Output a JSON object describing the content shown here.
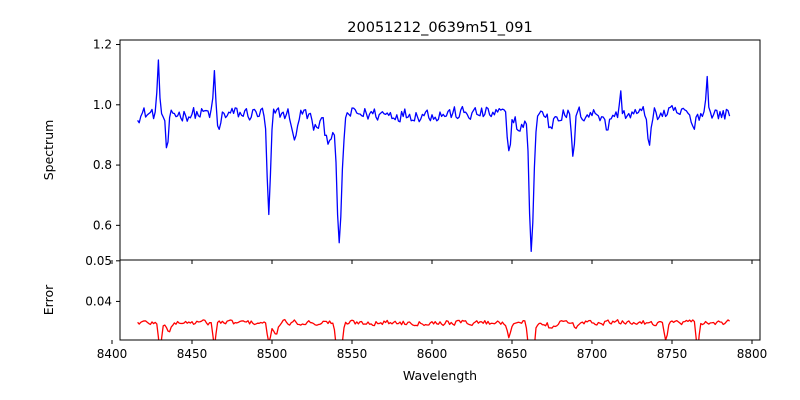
{
  "title": "20051212_0639m51_091",
  "chart_data": [
    {
      "type": "line",
      "title": "20051212_0639m51_091",
      "xlabel": "",
      "ylabel": "Spectrum",
      "xlim": [
        8405,
        8805
      ],
      "ylim": [
        0.485,
        1.215
      ],
      "xticks": [
        8400,
        8450,
        8500,
        8550,
        8600,
        8650,
        8700,
        8750,
        8800
      ],
      "yticks": [
        0.6,
        0.8,
        1.0,
        1.2
      ],
      "ytick_labels": [
        "0.6",
        "0.8",
        "1.0",
        "1.2"
      ],
      "grid": false,
      "series": [
        {
          "color": "#0000ff",
          "x_start": 8416,
          "x_end": 8786,
          "x_step": 1,
          "baseline": 0.97,
          "noise": 0.035,
          "features": [
            {
              "center": 8498.0,
              "depth": 0.34,
              "width": 1.1
            },
            {
              "center": 8542.1,
              "depth": 0.42,
              "width": 1.6
            },
            {
              "center": 8662.1,
              "depth": 0.44,
              "width": 1.4
            },
            {
              "center": 8434.5,
              "depth": 0.13,
              "width": 1.0
            },
            {
              "center": 8467.0,
              "depth": 0.06,
              "width": 1.0
            },
            {
              "center": 8514.0,
              "depth": 0.1,
              "width": 1.2
            },
            {
              "center": 8527.0,
              "depth": 0.05,
              "width": 2.0
            },
            {
              "center": 8535.0,
              "depth": 0.08,
              "width": 2.5
            },
            {
              "center": 8648.0,
              "depth": 0.14,
              "width": 1.0
            },
            {
              "center": 8655.0,
              "depth": 0.06,
              "width": 2.0
            },
            {
              "center": 8674.0,
              "depth": 0.05,
              "width": 1.2
            },
            {
              "center": 8688.0,
              "depth": 0.14,
              "width": 1.0
            },
            {
              "center": 8710.0,
              "depth": 0.06,
              "width": 1.0
            },
            {
              "center": 8736.0,
              "depth": 0.1,
              "width": 1.0
            },
            {
              "center": 8763.0,
              "depth": 0.06,
              "width": 1.0
            },
            {
              "center": 8429.0,
              "depth": -0.19,
              "width": 0.6
            },
            {
              "center": 8464.0,
              "depth": -0.14,
              "width": 0.6
            },
            {
              "center": 8772.0,
              "depth": -0.13,
              "width": 0.7
            },
            {
              "center": 8718.0,
              "depth": -0.06,
              "width": 0.6
            }
          ]
        }
      ]
    },
    {
      "type": "line",
      "xlabel": "Wavelength",
      "ylabel": "Error",
      "xlim": [
        8405,
        8805
      ],
      "ylim": [
        0.0305,
        0.0502
      ],
      "xticks": [
        8400,
        8450,
        8500,
        8550,
        8600,
        8650,
        8700,
        8750,
        8800
      ],
      "xtick_labels": [
        "8400",
        "8450",
        "8500",
        "8550",
        "8600",
        "8650",
        "8700",
        "8750",
        "8800"
      ],
      "yticks": [
        0.04,
        0.05
      ],
      "ytick_labels": [
        "0.04",
        "0.05"
      ],
      "grid": false,
      "series": [
        {
          "color": "#ff0000",
          "x_start": 8416,
          "x_end": 8786,
          "x_step": 1,
          "baseline": 0.0348,
          "noise": 0.0009,
          "features": [
            {
              "center": 8542.0,
              "depth": 0.0145,
              "width": 1.4
            },
            {
              "center": 8662.0,
              "depth": 0.0145,
              "width": 1.4
            },
            {
              "center": 8498.0,
              "depth": 0.005,
              "width": 1.0
            },
            {
              "center": 8430.0,
              "depth": 0.0075,
              "width": 0.9
            },
            {
              "center": 8464.0,
              "depth": 0.006,
              "width": 0.8
            },
            {
              "center": 8502.0,
              "depth": 0.003,
              "width": 1.5
            },
            {
              "center": 8648.0,
              "depth": 0.0032,
              "width": 1.0
            },
            {
              "center": 8746.0,
              "depth": 0.004,
              "width": 1.0
            },
            {
              "center": 8766.0,
              "depth": 0.0075,
              "width": 0.8
            },
            {
              "center": 8436.0,
              "depth": 0.002,
              "width": 1.5
            },
            {
              "center": 8675.0,
              "depth": 0.002,
              "width": 1.5
            },
            {
              "center": 8690.0,
              "depth": 0.0018,
              "width": 1.2
            }
          ]
        }
      ]
    }
  ]
}
